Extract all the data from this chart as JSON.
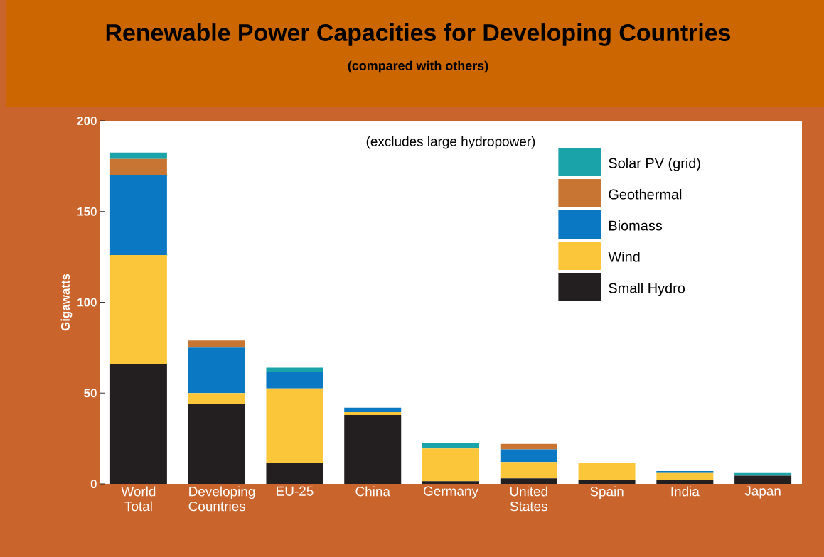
{
  "chart_data": {
    "type": "bar",
    "stacked": true,
    "title": "Renewable Power Capacities for Developing Countries",
    "subtitle": "(compared with others)",
    "ylabel": "Gigawatts",
    "annotations": [
      "(excludes large hydropower)"
    ],
    "categories": [
      "World Total",
      "Developing Countries",
      "EU-25",
      "China",
      "Germany",
      "United States",
      "Spain",
      "India",
      "Japan"
    ],
    "series": [
      {
        "name": "Small Hydro",
        "color": "#231f20",
        "values": [
          66,
          44,
          11.5,
          38,
          1.5,
          3,
          2,
          2,
          4.5
        ]
      },
      {
        "name": "Wind",
        "color": "#fcc63a",
        "values": [
          60,
          6,
          41,
          1.5,
          18,
          9,
          9.5,
          4,
          0
        ]
      },
      {
        "name": "Biomass",
        "color": "#0a78c2",
        "values": [
          44,
          25,
          9,
          2.5,
          0,
          7,
          0,
          1,
          0
        ]
      },
      {
        "name": "Geothermal",
        "color": "#c87533",
        "values": [
          9,
          4,
          0,
          0,
          0,
          3,
          0,
          0,
          0
        ]
      },
      {
        "name": "Solar PV (grid)",
        "color": "#1aa3a8",
        "values": [
          3.5,
          0,
          2.5,
          0,
          3,
          0,
          0,
          0,
          1.5
        ]
      }
    ],
    "ylim": [
      0,
      200
    ],
    "yticks": [
      0,
      50,
      100,
      150,
      200
    ],
    "legend": "top right",
    "grid": false
  }
}
